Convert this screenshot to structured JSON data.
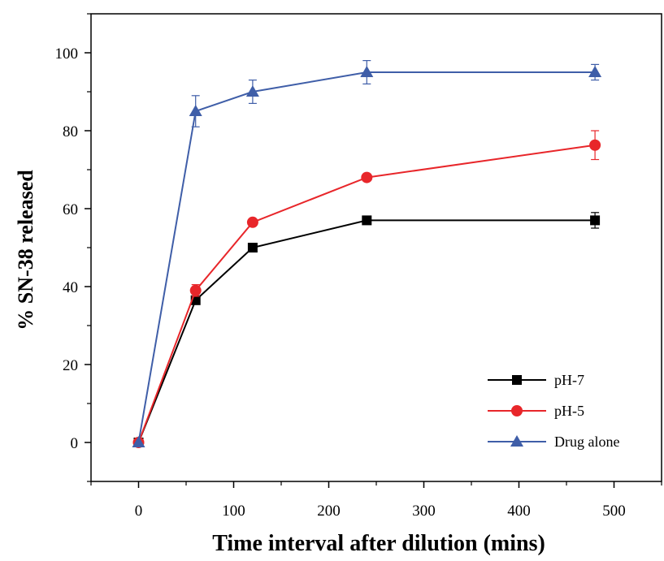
{
  "chart_data": {
    "type": "line",
    "title": "",
    "xlabel": "Time interval after dilution (mins)",
    "ylabel": "% SN-38 released",
    "xlim": [
      -50,
      550
    ],
    "ylim": [
      -10,
      110
    ],
    "xticks": [
      0,
      100,
      200,
      300,
      400,
      500
    ],
    "yticks": [
      0,
      20,
      40,
      60,
      80,
      100
    ],
    "grid": false,
    "legend_position": "bottom-right",
    "series": [
      {
        "name": "pH-7",
        "color": "#000000",
        "marker": "square",
        "x": [
          0,
          60,
          120,
          240,
          480
        ],
        "y": [
          0,
          36.5,
          50,
          57,
          57
        ],
        "error": [
          0,
          0,
          0,
          0,
          2
        ]
      },
      {
        "name": "pH-5",
        "color": "#e8262a",
        "marker": "circle",
        "x": [
          0,
          60,
          120,
          240,
          480
        ],
        "y": [
          0,
          39,
          56.5,
          68,
          76.3
        ],
        "error": [
          0,
          1.5,
          0,
          0,
          3.7
        ]
      },
      {
        "name": "Drug alone",
        "color": "#3f5ea8",
        "marker": "triangle",
        "x": [
          0,
          60,
          120,
          240,
          480
        ],
        "y": [
          0,
          85,
          90,
          95,
          95
        ],
        "error": [
          0,
          4,
          3,
          3,
          2
        ]
      }
    ]
  }
}
